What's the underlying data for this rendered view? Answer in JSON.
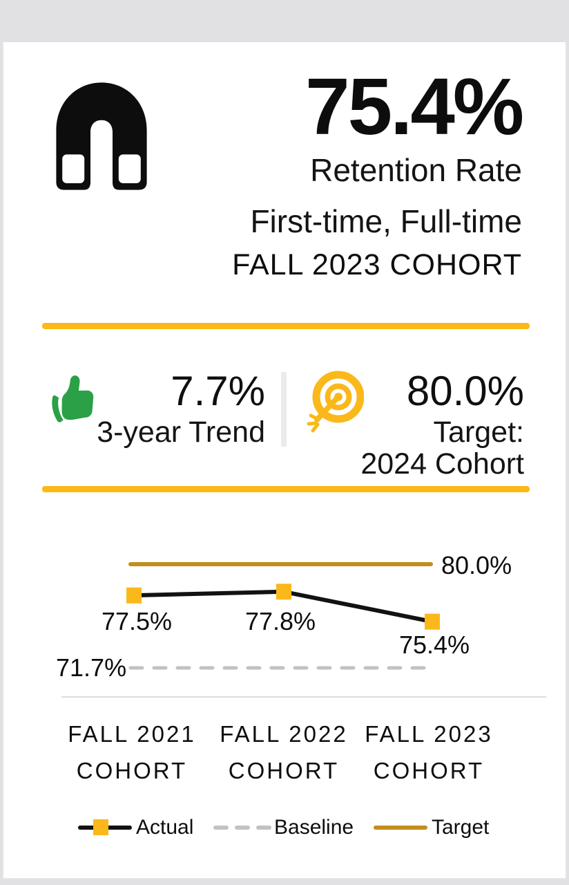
{
  "header": {
    "icon": "magnet-icon",
    "value": "75.4%",
    "label_line1": "Retention Rate",
    "label_line2": "First-time, Full-time",
    "label_line3": "FALL 2023 COHORT"
  },
  "kpis": {
    "trend": {
      "icon": "thumbs-up-icon",
      "value": "7.7%",
      "label": "3-year Trend"
    },
    "target": {
      "icon": "target-icon",
      "value": "80.0%",
      "label_line1": "Target:",
      "label_line2": "2024 Cohort"
    }
  },
  "chart_data": {
    "type": "line",
    "categories": [
      "FALL 2021 COHORT",
      "FALL 2022 COHORT",
      "FALL 2023 COHORT"
    ],
    "category_lines": [
      [
        "FALL 2021",
        "COHORT"
      ],
      [
        "FALL 2022",
        "COHORT"
      ],
      [
        "FALL 2023",
        "COHORT"
      ]
    ],
    "series": [
      {
        "name": "Actual",
        "values": [
          77.5,
          77.8,
          75.4
        ],
        "style": "solid",
        "color": "#121212",
        "marker": "square",
        "marker_color": "#FBB81B"
      },
      {
        "name": "Baseline",
        "values": [
          71.7,
          71.7,
          71.7
        ],
        "style": "dashed",
        "color": "#C2C2C2"
      },
      {
        "name": "Target",
        "values": [
          80.0,
          80.0,
          80.0
        ],
        "style": "solid",
        "color": "#C28E1E"
      }
    ],
    "data_labels": [
      "77.5%",
      "77.8%",
      "75.4%"
    ],
    "baseline_label": "71.7%",
    "target_label": "80.0%",
    "legend": [
      {
        "label": "Actual"
      },
      {
        "label": "Baseline"
      },
      {
        "label": "Target"
      }
    ],
    "legend_position": "bottom",
    "grid": false,
    "ylim": [
      70,
      82
    ]
  },
  "colors": {
    "accent_yellow": "#FCB816",
    "marker_yellow": "#FBB81B",
    "target_gold": "#C28E1E",
    "trend_green": "#2BA047",
    "baseline_gray": "#C2C2C2",
    "page_background": "#E1E1E3",
    "card_background": "#FFFFFF",
    "text": "#121212"
  }
}
